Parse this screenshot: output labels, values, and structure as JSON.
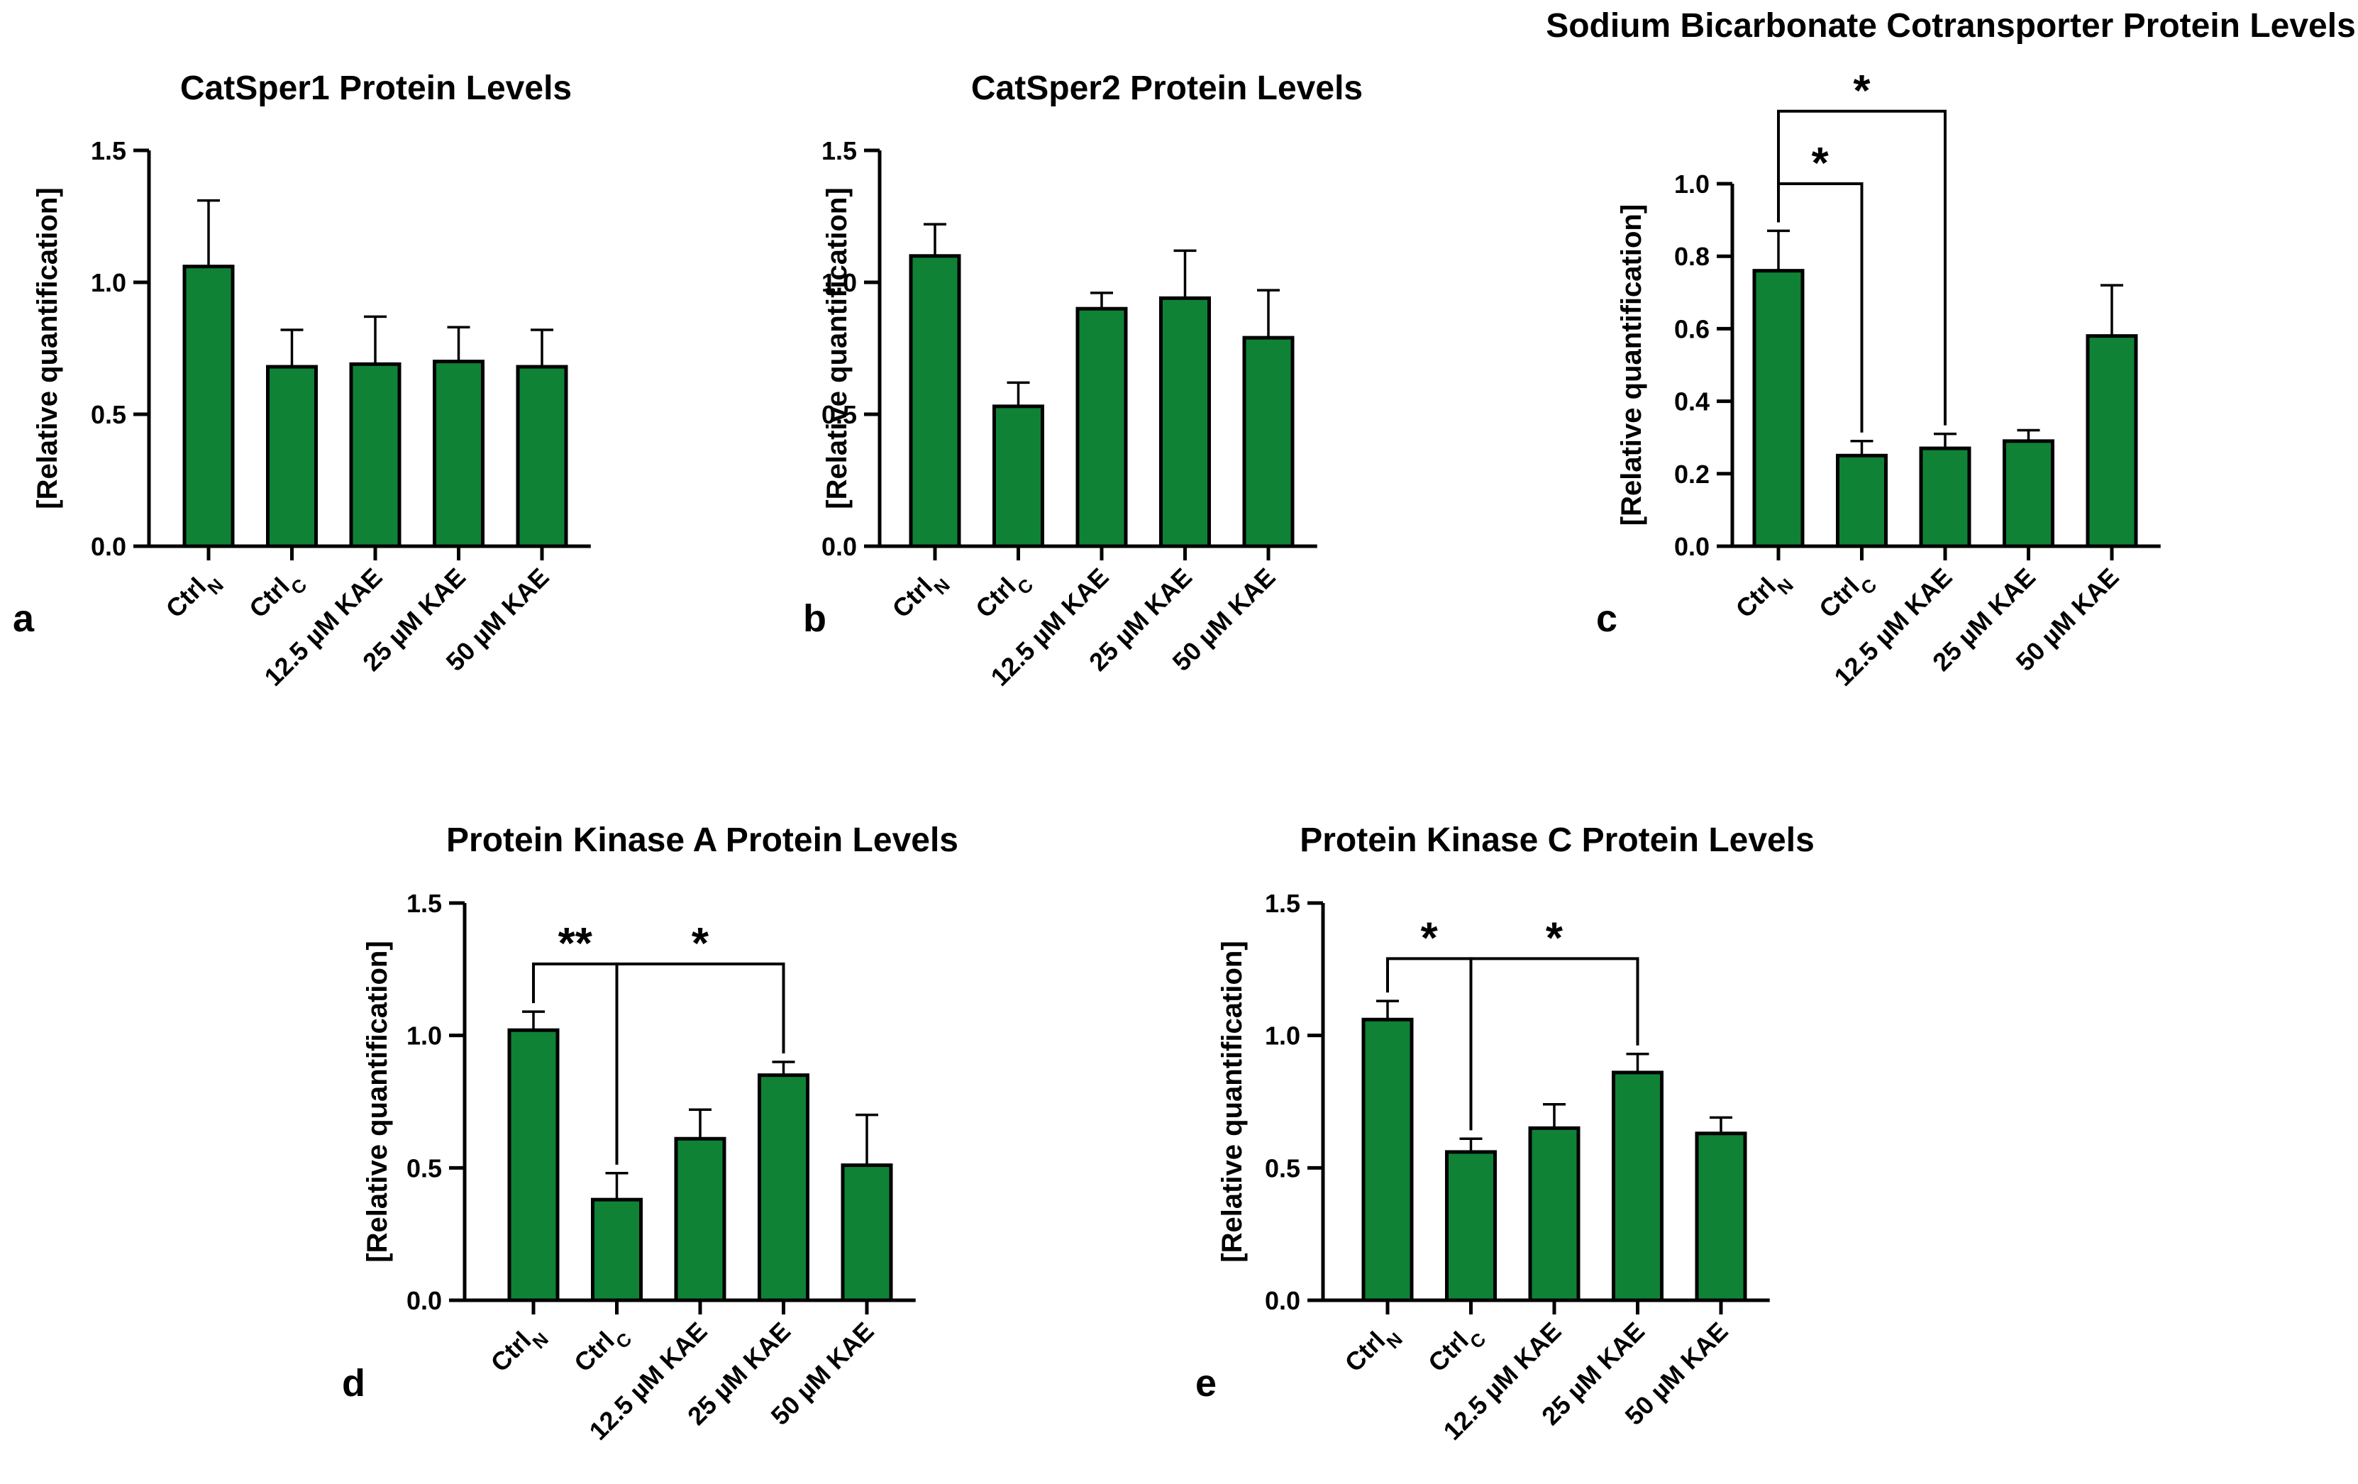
{
  "chart_data": [
    {
      "id": "a",
      "type": "bar",
      "panel_label": "a",
      "title": "CatSper1 Protein Levels",
      "ylabel": "[Relative quantification]",
      "xlabel": "",
      "ylim": [
        0,
        1.5
      ],
      "yticks": [
        "0.0",
        "0.5",
        "1.0",
        "1.5"
      ],
      "categories": [
        {
          "base": "Ctrl",
          "sub": "N"
        },
        {
          "base": "Ctrl",
          "sub": "C"
        },
        {
          "base": "12.5 µM KAE",
          "sub": ""
        },
        {
          "base": "25 µM KAE",
          "sub": ""
        },
        {
          "base": "50 µM KAE",
          "sub": ""
        }
      ],
      "values": [
        1.06,
        0.68,
        0.69,
        0.7,
        0.68
      ],
      "errors": [
        0.25,
        0.14,
        0.18,
        0.13,
        0.14
      ],
      "bar_color": "#0f8236",
      "significance": []
    },
    {
      "id": "b",
      "type": "bar",
      "panel_label": "b",
      "title": "CatSper2 Protein Levels",
      "ylabel": "[Relative quantification]",
      "xlabel": "",
      "ylim": [
        0,
        1.5
      ],
      "yticks": [
        "0.0",
        "0.5",
        "1.0",
        "1.5"
      ],
      "categories": [
        {
          "base": "Ctrl",
          "sub": "N"
        },
        {
          "base": "Ctrl",
          "sub": "C"
        },
        {
          "base": "12.5 µM KAE",
          "sub": ""
        },
        {
          "base": "25 µM KAE",
          "sub": ""
        },
        {
          "base": "50 µM KAE",
          "sub": ""
        }
      ],
      "values": [
        1.1,
        0.53,
        0.9,
        0.94,
        0.79
      ],
      "errors": [
        0.12,
        0.09,
        0.06,
        0.18,
        0.18
      ],
      "bar_color": "#0f8236",
      "significance": []
    },
    {
      "id": "c",
      "type": "bar",
      "panel_label": "c",
      "title": "Sodium Bicarbonate Cotransporter Protein Levels",
      "ylabel": "[Relative quantification]",
      "xlabel": "",
      "ylim": [
        0,
        1.0
      ],
      "yticks": [
        "0.0",
        "0.2",
        "0.4",
        "0.6",
        "0.8",
        "1.0"
      ],
      "categories": [
        {
          "base": "Ctrl",
          "sub": "N"
        },
        {
          "base": "Ctrl",
          "sub": "C"
        },
        {
          "base": "12.5 µM KAE",
          "sub": ""
        },
        {
          "base": "25 µM KAE",
          "sub": ""
        },
        {
          "base": "50 µM KAE",
          "sub": ""
        }
      ],
      "values": [
        0.76,
        0.25,
        0.27,
        0.29,
        0.58
      ],
      "errors": [
        0.11,
        0.04,
        0.04,
        0.03,
        0.14
      ],
      "bar_color": "#0f8236",
      "significance": [
        {
          "from": 0,
          "to": 1,
          "label": "*",
          "level": 1.0
        },
        {
          "from": 0,
          "to": 2,
          "label": "*",
          "level": 1.2
        }
      ]
    },
    {
      "id": "d",
      "type": "bar",
      "panel_label": "d",
      "title": "Protein Kinase A Protein Levels",
      "ylabel": "[Relative quantification]",
      "xlabel": "",
      "ylim": [
        0,
        1.5
      ],
      "yticks": [
        "0.0",
        "0.5",
        "1.0",
        "1.5"
      ],
      "categories": [
        {
          "base": "Ctrl",
          "sub": "N"
        },
        {
          "base": "Ctrl",
          "sub": "C"
        },
        {
          "base": "12.5 µM KAE",
          "sub": ""
        },
        {
          "base": "25 µM KAE",
          "sub": ""
        },
        {
          "base": "50 µM KAE",
          "sub": ""
        }
      ],
      "values": [
        1.02,
        0.38,
        0.61,
        0.85,
        0.51
      ],
      "errors": [
        0.07,
        0.1,
        0.11,
        0.05,
        0.19
      ],
      "bar_color": "#0f8236",
      "significance": [
        {
          "from": 0,
          "to": 1,
          "label": "**",
          "level": 1.27
        },
        {
          "from": 1,
          "to": 3,
          "label": "*",
          "level": 1.27
        }
      ]
    },
    {
      "id": "e",
      "type": "bar",
      "panel_label": "e",
      "title": "Protein Kinase C Protein Levels",
      "ylabel": "[Relative quantification]",
      "xlabel": "",
      "ylim": [
        0,
        1.5
      ],
      "yticks": [
        "0.0",
        "0.5",
        "1.0",
        "1.5"
      ],
      "categories": [
        {
          "base": "Ctrl",
          "sub": "N"
        },
        {
          "base": "Ctrl",
          "sub": "C"
        },
        {
          "base": "12.5 µM KAE",
          "sub": ""
        },
        {
          "base": "25 µM KAE",
          "sub": ""
        },
        {
          "base": "50 µM KAE",
          "sub": ""
        }
      ],
      "values": [
        1.06,
        0.56,
        0.65,
        0.86,
        0.63
      ],
      "errors": [
        0.07,
        0.05,
        0.09,
        0.07,
        0.06
      ],
      "bar_color": "#0f8236",
      "significance": [
        {
          "from": 0,
          "to": 1,
          "label": "*",
          "level": 1.29
        },
        {
          "from": 1,
          "to": 3,
          "label": "*",
          "level": 1.29
        }
      ]
    }
  ]
}
